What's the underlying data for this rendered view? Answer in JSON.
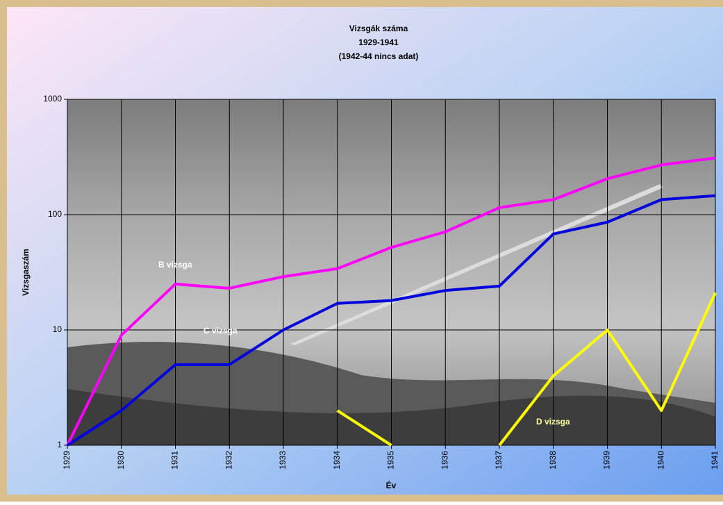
{
  "chart_data": {
    "type": "line",
    "title": "Vizsgák száma",
    "subtitle": "1929-1941",
    "note": "(1942-44 nincs adat)",
    "x_label": "Év",
    "y_label": "Vizsgaszám",
    "categories": [
      "1929",
      "1930",
      "1931",
      "1932",
      "1933",
      "1934",
      "1935",
      "1936",
      "1937",
      "1938",
      "1939",
      "1940",
      "1941"
    ],
    "series": [
      {
        "name": "B vizsga",
        "color": "#ff00ff",
        "values": [
          1,
          9,
          25,
          23,
          29,
          34,
          52,
          71,
          115,
          135,
          205,
          270,
          310
        ]
      },
      {
        "name": "C vizsga",
        "color": "#0000dd",
        "values": [
          1,
          2,
          5,
          5,
          10,
          17,
          18,
          22,
          24,
          68,
          86,
          135,
          146
        ]
      },
      {
        "name": "D vizsga",
        "color": "#ffff00",
        "values": [
          null,
          null,
          null,
          null,
          null,
          2,
          1,
          null,
          1,
          4,
          10,
          2,
          21
        ]
      }
    ],
    "ylim": [
      1,
      1000
    ],
    "yticks": [
      1,
      10,
      100,
      1000
    ],
    "log_scale": true,
    "grid": true
  }
}
